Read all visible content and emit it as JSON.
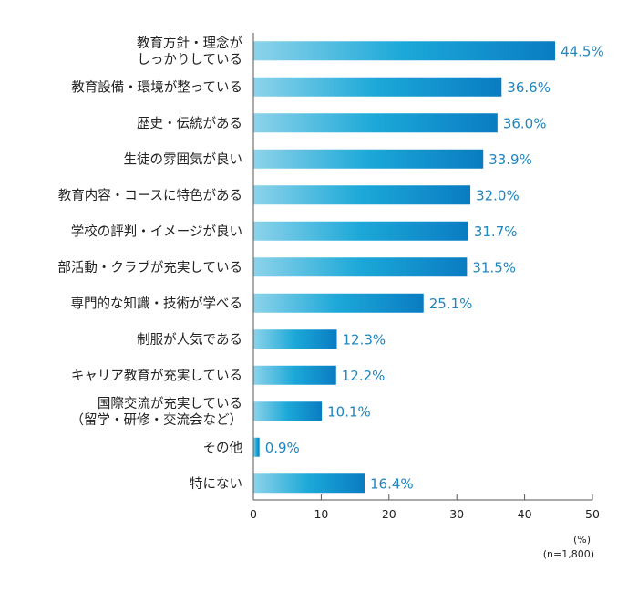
{
  "chart_data": {
    "type": "bar",
    "orientation": "horizontal",
    "categories": [
      "教育方針・理念が\nしっかりしている",
      "教育設備・環境が整っている",
      "歴史・伝統がある",
      "生徒の雰囲気が良い",
      "教育内容・コースに特色がある",
      "学校の評判・イメージが良い",
      "部活動・クラブが充実している",
      "専門的な知識・技術が学べる",
      "制服が人気である",
      "キャリア教育が充実している",
      "国際交流が充実している\n（留学・研修・交流会など）",
      "その他",
      "特にない"
    ],
    "values": [
      44.5,
      36.6,
      36.0,
      33.9,
      32.0,
      31.7,
      31.5,
      25.1,
      12.3,
      12.2,
      10.1,
      0.9,
      16.4
    ],
    "value_labels": [
      "44.5%",
      "36.6%",
      "36.0%",
      "33.9%",
      "32.0%",
      "31.7%",
      "31.5%",
      "25.1%",
      "12.3%",
      "12.2%",
      "10.1%",
      "0.9%",
      "16.4%"
    ],
    "x_ticks": [
      "0",
      "10",
      "20",
      "30",
      "40",
      "50"
    ],
    "xlim": [
      0,
      50
    ],
    "unit_label": "(%)",
    "sample_note": "(n=1,800)",
    "grid": false,
    "colors": {
      "bar_light": "#8dd3ea",
      "bar_mid": "#1ba8d8",
      "bar_dark": "#0a7cc2",
      "value_text": "#1f86bf",
      "label_text": "#222222",
      "axis": "#555555"
    }
  }
}
